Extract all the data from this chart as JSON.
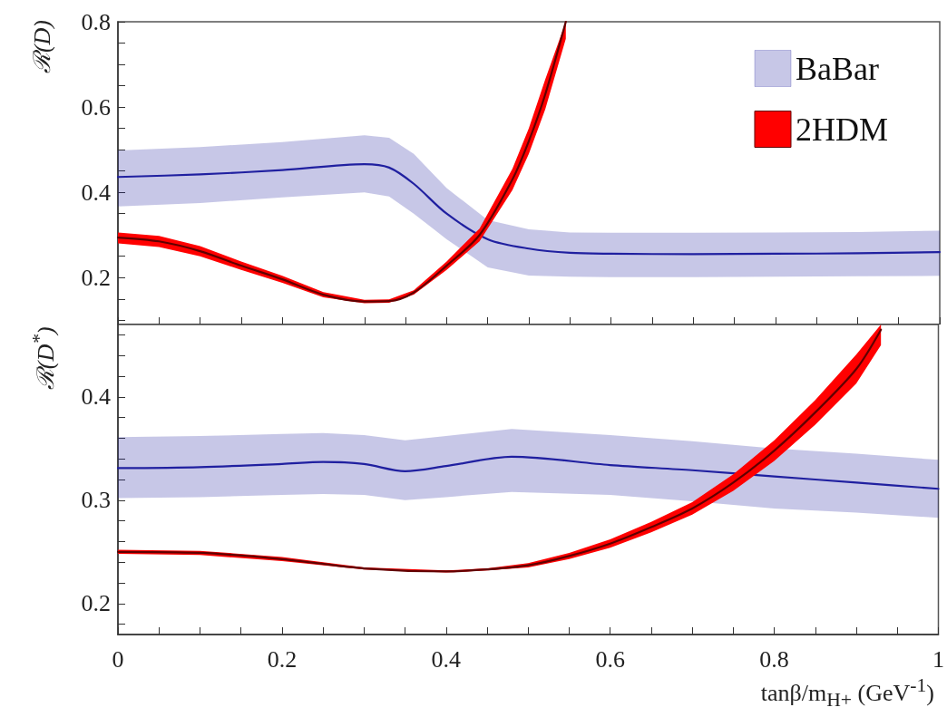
{
  "chart_data": [
    {
      "type": "line",
      "ylabel": "ℛ(D)",
      "xlim": [
        0,
        1
      ],
      "ylim": [
        0.09,
        0.8
      ],
      "xticks": [
        0,
        {
          "value": 0.05,
          "label": null
        },
        {
          "value": 0.1,
          "label": null
        },
        {
          "value": 0.15,
          "label": null
        },
        0.2,
        {
          "value": 0.25,
          "label": null
        },
        {
          "value": 0.3,
          "label": null
        },
        {
          "value": 0.35,
          "label": null
        },
        0.4,
        {
          "value": 0.45,
          "label": null
        },
        {
          "value": 0.5,
          "label": null
        },
        {
          "value": 0.55,
          "label": null
        },
        0.6,
        {
          "value": 0.65,
          "label": null
        },
        {
          "value": 0.7,
          "label": null
        },
        {
          "value": 0.75,
          "label": null
        },
        0.8,
        {
          "value": 0.85,
          "label": null
        },
        {
          "value": 0.9,
          "label": null
        },
        {
          "value": 0.95,
          "label": null
        },
        1
      ],
      "yticks": [
        {
          "value": 0.1,
          "label": null
        },
        {
          "value": 0.15,
          "label": null
        },
        0.2,
        {
          "value": 0.25,
          "label": null
        },
        {
          "value": 0.3,
          "label": null
        },
        {
          "value": 0.35,
          "label": null
        },
        0.4,
        {
          "value": 0.45,
          "label": null
        },
        {
          "value": 0.5,
          "label": null
        },
        {
          "value": 0.55,
          "label": null
        },
        0.6,
        {
          "value": 0.65,
          "label": null
        },
        {
          "value": 0.7,
          "label": null
        },
        {
          "value": 0.75,
          "label": null
        },
        0.8
      ],
      "tick_labels": "y",
      "grid": false,
      "legend": "top right",
      "marker": "none",
      "line_style": "solid",
      "series": [
        {
          "name": "BaBar",
          "color": "#2020a0",
          "x": [
            0,
            0.1,
            0.2,
            0.3,
            0.33,
            0.36,
            0.4,
            0.45,
            0.5,
            0.55,
            0.6,
            0.7,
            0.8,
            0.9,
            1
          ],
          "values": [
            0.436,
            0.442,
            0.452,
            0.466,
            0.458,
            0.42,
            0.35,
            0.29,
            0.268,
            0.258,
            0.256,
            0.255,
            0.256,
            0.257,
            0.26
          ],
          "lower": [
            0.367,
            0.375,
            0.388,
            0.4,
            0.39,
            0.35,
            0.29,
            0.224,
            0.205,
            0.202,
            0.201,
            0.201,
            0.202,
            0.203,
            0.204
          ],
          "upper": [
            0.498,
            0.506,
            0.518,
            0.534,
            0.528,
            0.49,
            0.41,
            0.335,
            0.313,
            0.306,
            0.305,
            0.305,
            0.306,
            0.307,
            0.31
          ]
        },
        {
          "name": "2HDM",
          "color": "#600000",
          "x": [
            0,
            0.05,
            0.1,
            0.15,
            0.2,
            0.25,
            0.3,
            0.33,
            0.36,
            0.4,
            0.44,
            0.48,
            0.5,
            0.52,
            0.545
          ],
          "values": [
            0.294,
            0.285,
            0.262,
            0.228,
            0.196,
            0.16,
            0.144,
            0.145,
            0.165,
            0.228,
            0.3,
            0.43,
            0.52,
            0.63,
            0.8
          ],
          "lower": [
            0.28,
            0.272,
            0.25,
            0.218,
            0.188,
            0.154,
            0.14,
            0.141,
            0.16,
            0.218,
            0.285,
            0.405,
            0.49,
            0.595,
            0.76
          ],
          "upper": [
            0.306,
            0.298,
            0.274,
            0.238,
            0.204,
            0.166,
            0.148,
            0.149,
            0.17,
            0.238,
            0.315,
            0.455,
            0.55,
            0.665,
            0.8
          ]
        }
      ]
    },
    {
      "type": "line",
      "ylabel": "ℛ(D$^{*}$)",
      "xlabel": "tanβ/m$_{H+}$ (GeV$^{-1}$)",
      "xlim": [
        0,
        1
      ],
      "ylim": [
        0.17,
        0.47
      ],
      "xticks": [
        0,
        {
          "value": 0.05,
          "label": null
        },
        {
          "value": 0.1,
          "label": null
        },
        {
          "value": 0.15,
          "label": null
        },
        0.2,
        {
          "value": 0.25,
          "label": null
        },
        {
          "value": 0.3,
          "label": null
        },
        {
          "value": 0.35,
          "label": null
        },
        0.4,
        {
          "value": 0.45,
          "label": null
        },
        {
          "value": 0.5,
          "label": null
        },
        {
          "value": 0.55,
          "label": null
        },
        0.6,
        {
          "value": 0.65,
          "label": null
        },
        {
          "value": 0.7,
          "label": null
        },
        {
          "value": 0.75,
          "label": null
        },
        0.8,
        {
          "value": 0.85,
          "label": null
        },
        {
          "value": 0.9,
          "label": null
        },
        {
          "value": 0.95,
          "label": null
        },
        1
      ],
      "yticks": [
        {
          "value": 0.18,
          "label": null
        },
        0.2,
        {
          "value": 0.22,
          "label": null
        },
        {
          "value": 0.24,
          "label": null
        },
        {
          "value": 0.26,
          "label": null
        },
        {
          "value": 0.28,
          "label": null
        },
        0.3,
        {
          "value": 0.32,
          "label": null
        },
        {
          "value": 0.34,
          "label": null
        },
        {
          "value": 0.36,
          "label": null
        },
        {
          "value": 0.38,
          "label": null
        },
        0.4,
        {
          "value": 0.42,
          "label": null
        },
        {
          "value": 0.44,
          "label": null
        },
        {
          "value": 0.46,
          "label": null
        }
      ],
      "grid": false,
      "legend": false,
      "marker": "none",
      "line_style": "solid",
      "series": [
        {
          "color": "#2020a0",
          "x": [
            0,
            0.1,
            0.2,
            0.25,
            0.3,
            0.35,
            0.4,
            0.48,
            0.6,
            0.7,
            0.8,
            0.9,
            1
          ],
          "values": [
            0.331,
            0.332,
            0.335,
            0.337,
            0.335,
            0.328,
            0.333,
            0.342,
            0.334,
            0.329,
            0.323,
            0.317,
            0.311
          ],
          "lower": [
            0.302,
            0.303,
            0.305,
            0.306,
            0.305,
            0.3,
            0.303,
            0.308,
            0.305,
            0.299,
            0.292,
            0.288,
            0.283
          ],
          "upper": [
            0.361,
            0.362,
            0.364,
            0.365,
            0.363,
            0.358,
            0.362,
            0.369,
            0.363,
            0.357,
            0.35,
            0.345,
            0.339
          ]
        },
        {
          "color": "#600000",
          "x": [
            0,
            0.1,
            0.2,
            0.3,
            0.4,
            0.45,
            0.5,
            0.55,
            0.6,
            0.65,
            0.7,
            0.75,
            0.8,
            0.85,
            0.9,
            0.93
          ],
          "values": [
            0.25,
            0.249,
            0.243,
            0.234,
            0.231,
            0.233,
            0.237,
            0.246,
            0.258,
            0.274,
            0.292,
            0.317,
            0.348,
            0.385,
            0.427,
            0.465
          ],
          "lower": [
            0.248,
            0.247,
            0.241,
            0.233,
            0.23,
            0.232,
            0.235,
            0.243,
            0.254,
            0.269,
            0.286,
            0.309,
            0.338,
            0.373,
            0.413,
            0.45
          ],
          "upper": [
            0.252,
            0.251,
            0.245,
            0.235,
            0.232,
            0.234,
            0.239,
            0.249,
            0.262,
            0.279,
            0.298,
            0.325,
            0.358,
            0.397,
            0.441,
            0.47
          ]
        }
      ]
    }
  ]
}
